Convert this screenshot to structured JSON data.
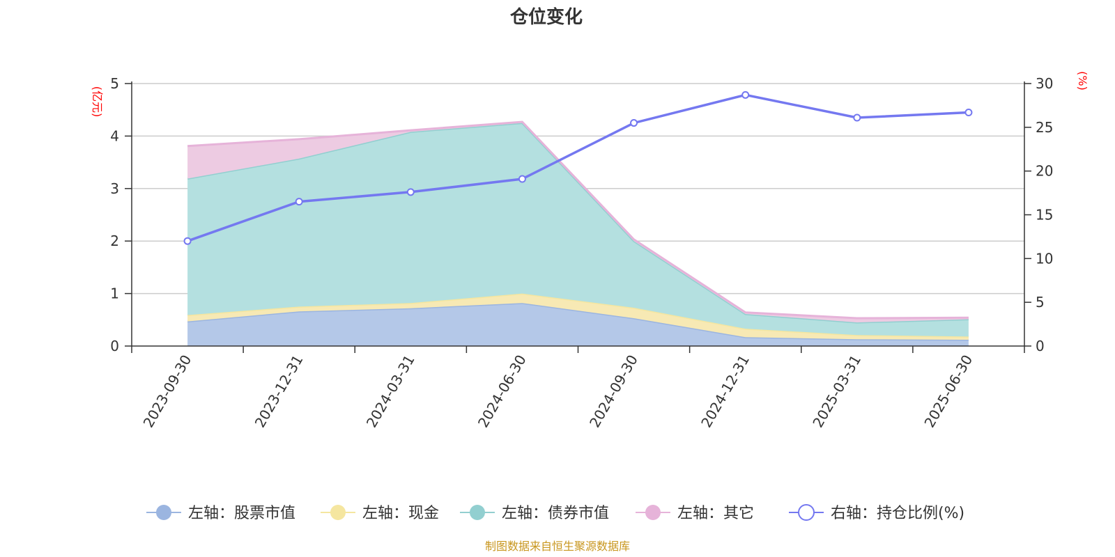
{
  "chart_data": {
    "type": "area",
    "title": "仓位变化",
    "categories": [
      "2023-09-30",
      "2023-12-31",
      "2024-03-31",
      "2024-06-30",
      "2024-09-30",
      "2024-12-31",
      "2025-03-31",
      "2025-06-30"
    ],
    "left_axis": {
      "unit": "(亿元)",
      "ylim": [
        0,
        5
      ],
      "ticks": [
        "0",
        "1",
        "2",
        "3",
        "4",
        "5"
      ]
    },
    "right_axis": {
      "unit": "(%)",
      "ylim": [
        0,
        30
      ],
      "ticks": [
        "0",
        "5",
        "10",
        "15",
        "20",
        "25",
        "30"
      ]
    },
    "stacked": true,
    "grid": true,
    "legend_position": "bottom",
    "series": [
      {
        "name": "左轴：股票市值",
        "axis": "left",
        "type": "area",
        "color": "#9bb5e0",
        "fill": "#b4c8e8",
        "values": [
          0.47,
          0.66,
          0.72,
          0.82,
          0.53,
          0.17,
          0.13,
          0.12
        ]
      },
      {
        "name": "左轴：现金",
        "axis": "left",
        "type": "area",
        "color": "#f5e6a0",
        "fill": "#f7e9b4",
        "values": [
          0.12,
          0.09,
          0.1,
          0.18,
          0.2,
          0.16,
          0.08,
          0.06
        ]
      },
      {
        "name": "左轴：债券市值",
        "axis": "left",
        "type": "area",
        "color": "#92cfd0",
        "fill": "#b4e0e0",
        "values": [
          2.6,
          2.82,
          3.26,
          3.25,
          1.27,
          0.28,
          0.24,
          0.33
        ]
      },
      {
        "name": "左轴：其它",
        "axis": "left",
        "type": "area",
        "color": "#e6b3d9",
        "fill": "#edcbe2",
        "values": [
          0.62,
          0.37,
          0.03,
          0.02,
          0.03,
          0.03,
          0.08,
          0.03
        ]
      },
      {
        "name": "右轴：持仓比例(%)",
        "axis": "right",
        "type": "line",
        "color": "#7478f0",
        "values": [
          12.0,
          16.5,
          17.6,
          19.1,
          25.5,
          28.7,
          26.1,
          26.7
        ]
      }
    ]
  },
  "footer": {
    "source": "制图数据来自恒生聚源数据库"
  }
}
